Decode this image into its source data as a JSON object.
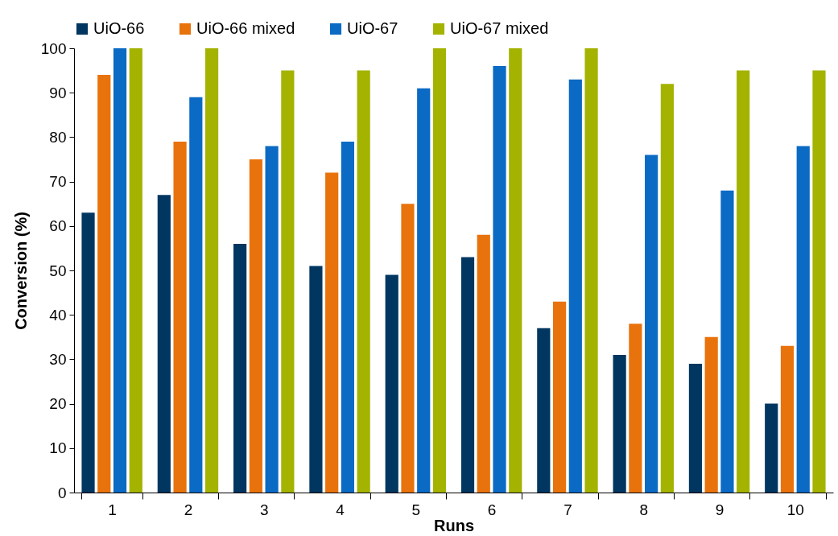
{
  "chart_data": {
    "type": "bar",
    "xlabel": "Runs",
    "ylabel": "Conversion (%)",
    "categories": [
      "1",
      "2",
      "3",
      "4",
      "5",
      "6",
      "7",
      "8",
      "9",
      "10"
    ],
    "series": [
      {
        "name": "UiO-66",
        "color": "#003660",
        "values": [
          63,
          67,
          56,
          51,
          49,
          53,
          37,
          31,
          29,
          20
        ]
      },
      {
        "name": "UiO-66 mixed",
        "color": "#e8730c",
        "values": [
          94,
          79,
          75,
          72,
          65,
          58,
          43,
          38,
          35,
          33
        ]
      },
      {
        "name": "UiO-67",
        "color": "#0a6ac4",
        "values": [
          100,
          89,
          78,
          79,
          91,
          96,
          93,
          76,
          68,
          78
        ]
      },
      {
        "name": "UiO-67 mixed",
        "color": "#a3b300",
        "values": [
          100,
          100,
          95,
          95,
          100,
          100,
          100,
          92,
          95,
          95
        ]
      }
    ],
    "ylim": [
      0,
      100
    ],
    "yticks": [
      0,
      10,
      20,
      30,
      40,
      50,
      60,
      70,
      80,
      90,
      100
    ],
    "grid": false,
    "legend": "top"
  }
}
